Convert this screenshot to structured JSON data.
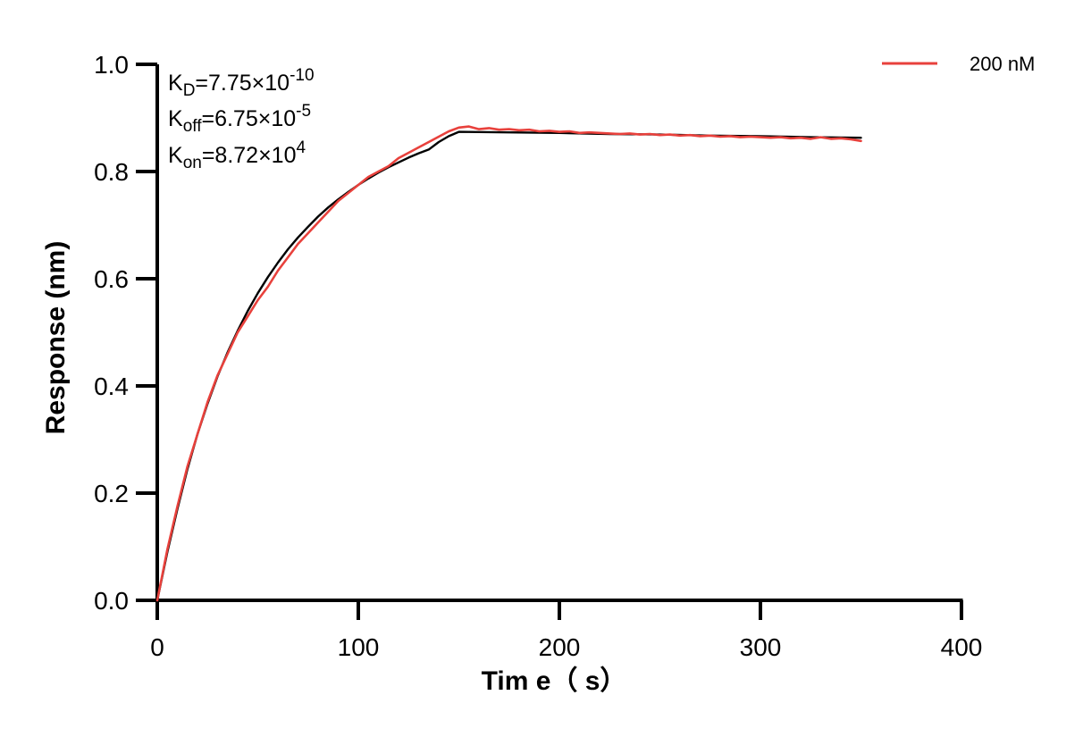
{
  "chart_data": {
    "type": "line",
    "xlabel": "Tim e（ s）",
    "ylabel": "Response (nm)",
    "xlim": [
      0,
      400
    ],
    "ylim": [
      0,
      1.0
    ],
    "x_ticks": [
      "0",
      "100",
      "200",
      "300",
      "400"
    ],
    "y_ticks": [
      "0.0",
      "0.2",
      "0.4",
      "0.6",
      "0.8",
      "1.0"
    ],
    "grid": false,
    "legend_position": "top-right",
    "annotations": {
      "kd": {
        "base": "K",
        "sub": "D",
        "value": "=7.75×10",
        "exp": "-10"
      },
      "koff": {
        "base": "K",
        "sub": "off",
        "value": "=6.75×10",
        "exp": "-5"
      },
      "kon": {
        "base": "K",
        "sub": "on",
        "value": "=8.72×10",
        "exp": "4"
      }
    },
    "series": [
      {
        "name": "200 nM",
        "color": "#e8413c",
        "x": [
          0,
          5,
          10,
          15,
          20,
          25,
          30,
          35,
          40,
          45,
          50,
          55,
          60,
          65,
          70,
          75,
          80,
          85,
          90,
          95,
          100,
          105,
          110,
          115,
          120,
          125,
          130,
          135,
          140,
          145,
          150,
          155,
          160,
          165,
          170,
          175,
          180,
          185,
          190,
          195,
          200,
          205,
          210,
          215,
          220,
          225,
          230,
          235,
          240,
          245,
          250,
          255,
          260,
          265,
          270,
          275,
          280,
          285,
          290,
          295,
          300,
          305,
          310,
          315,
          320,
          325,
          330,
          335,
          340,
          345,
          350
        ],
        "y": [
          0.0,
          0.095,
          0.175,
          0.25,
          0.31,
          0.37,
          0.42,
          0.46,
          0.5,
          0.53,
          0.56,
          0.585,
          0.615,
          0.64,
          0.665,
          0.685,
          0.705,
          0.725,
          0.745,
          0.76,
          0.775,
          0.79,
          0.8,
          0.81,
          0.825,
          0.835,
          0.845,
          0.855,
          0.865,
          0.875,
          0.882,
          0.884,
          0.879,
          0.881,
          0.878,
          0.879,
          0.877,
          0.878,
          0.875,
          0.876,
          0.874,
          0.875,
          0.872,
          0.873,
          0.872,
          0.871,
          0.87,
          0.871,
          0.869,
          0.87,
          0.868,
          0.869,
          0.867,
          0.868,
          0.866,
          0.867,
          0.865,
          0.866,
          0.864,
          0.865,
          0.864,
          0.863,
          0.864,
          0.862,
          0.863,
          0.861,
          0.864,
          0.861,
          0.862,
          0.86,
          0.857
        ]
      },
      {
        "name": "",
        "color": "#000000",
        "x": [
          0,
          5,
          10,
          15,
          20,
          25,
          30,
          35,
          40,
          45,
          50,
          55,
          60,
          65,
          70,
          75,
          80,
          85,
          90,
          95,
          100,
          105,
          110,
          115,
          120,
          125,
          130,
          135,
          140,
          145,
          150,
          175,
          200,
          225,
          250,
          275,
          300,
          325,
          350
        ],
        "y": [
          0.0,
          0.09,
          0.17,
          0.245,
          0.31,
          0.367,
          0.418,
          0.463,
          0.503,
          0.54,
          0.573,
          0.603,
          0.63,
          0.655,
          0.677,
          0.697,
          0.716,
          0.733,
          0.748,
          0.762,
          0.775,
          0.787,
          0.798,
          0.808,
          0.817,
          0.826,
          0.834,
          0.841,
          0.855,
          0.866,
          0.874,
          0.873,
          0.872,
          0.87,
          0.869,
          0.867,
          0.866,
          0.864,
          0.863
        ]
      }
    ]
  }
}
